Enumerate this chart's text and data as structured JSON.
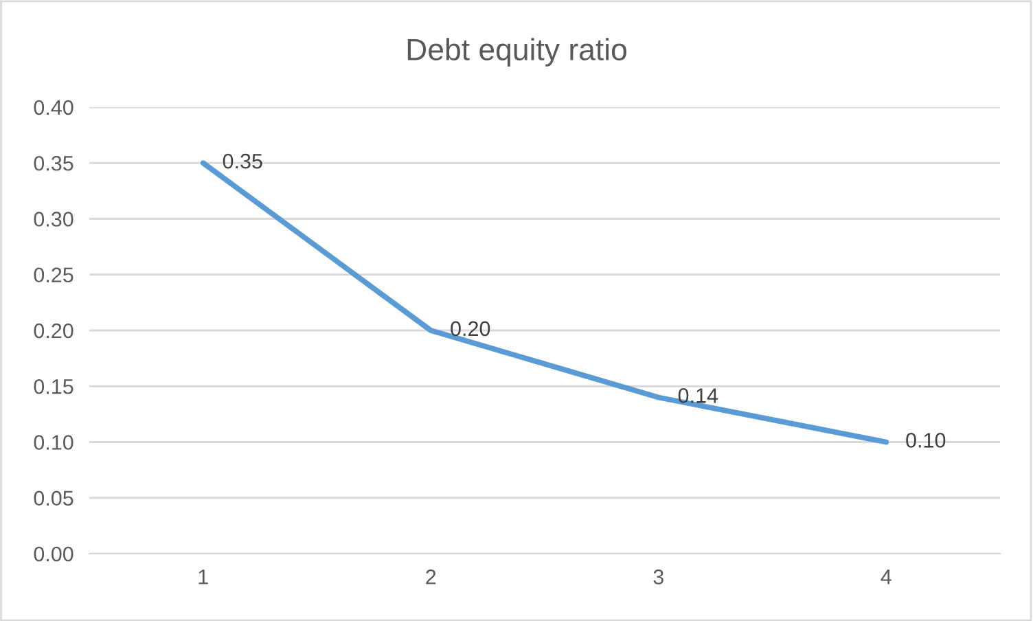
{
  "chart_data": {
    "type": "line",
    "title": "Debt equity ratio",
    "categories": [
      "1",
      "2",
      "3",
      "4"
    ],
    "series": [
      {
        "color": "#5b9bd5",
        "values": [
          0.35,
          0.2,
          0.14,
          0.1
        ],
        "value_labels": [
          "0.35",
          "0.20",
          "0.14",
          "0.10"
        ]
      }
    ],
    "ylim": [
      0,
      0.4
    ],
    "yticks": [
      {
        "value": 0,
        "label": "0.00"
      },
      {
        "value": 0.05,
        "label": "0.05"
      },
      {
        "value": 0.1,
        "label": "0.10"
      },
      {
        "value": 0.15,
        "label": "0.15"
      },
      {
        "value": 0.2,
        "label": "0.20"
      },
      {
        "value": 0.25,
        "label": "0.25"
      },
      {
        "value": 0.3,
        "label": "0.30"
      },
      {
        "value": 0.35,
        "label": "0.35"
      },
      {
        "value": 0.4,
        "label": "0.40"
      }
    ],
    "grid": "y",
    "marker": "none",
    "line_style": "solid"
  }
}
